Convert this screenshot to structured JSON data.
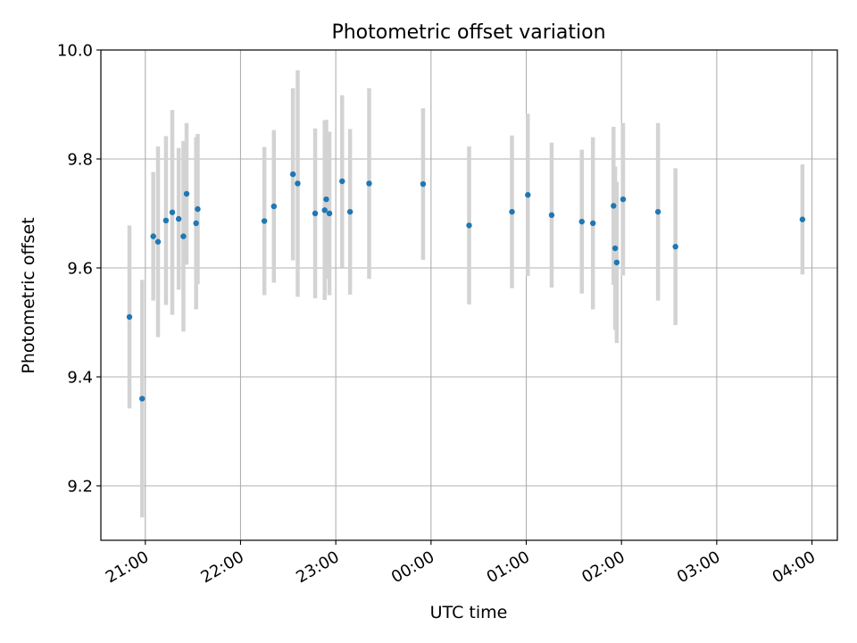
{
  "chart_data": {
    "type": "scatter",
    "title": "Photometric offset variation",
    "xlabel": "UTC time",
    "ylabel": "Photometric offset",
    "ylim": [
      9.1,
      10.0
    ],
    "y_ticks": [
      9.2,
      9.4,
      9.6,
      9.8,
      10.0
    ],
    "y_tick_labels": [
      "9.2",
      "9.4",
      "9.6",
      "9.8",
      "10.0"
    ],
    "xlim": [
      "20:32",
      "04:16"
    ],
    "x_tick_labels": [
      "21:00",
      "22:00",
      "23:00",
      "00:00",
      "01:00",
      "02:00",
      "03:00",
      "04:00"
    ],
    "grid": true,
    "marker_color": "#1f77b4",
    "errorbar_color": "#d3d3d3",
    "points": [
      {
        "t": "20:50",
        "y": 9.51,
        "err": 0.168
      },
      {
        "t": "20:58",
        "y": 9.36,
        "err": 0.218
      },
      {
        "t": "21:05",
        "y": 9.658,
        "err": 0.118
      },
      {
        "t": "21:08",
        "y": 9.648,
        "err": 0.175
      },
      {
        "t": "21:13",
        "y": 9.687,
        "err": 0.155
      },
      {
        "t": "21:17",
        "y": 9.702,
        "err": 0.188
      },
      {
        "t": "21:21",
        "y": 9.69,
        "err": 0.13
      },
      {
        "t": "21:24",
        "y": 9.658,
        "err": 0.175
      },
      {
        "t": "21:26",
        "y": 9.736,
        "err": 0.13
      },
      {
        "t": "21:32",
        "y": 9.682,
        "err": 0.158
      },
      {
        "t": "21:33",
        "y": 9.708,
        "err": 0.138
      },
      {
        "t": "22:15",
        "y": 9.686,
        "err": 0.136
      },
      {
        "t": "22:21",
        "y": 9.713,
        "err": 0.14
      },
      {
        "t": "22:33",
        "y": 9.772,
        "err": 0.158
      },
      {
        "t": "22:36",
        "y": 9.755,
        "err": 0.208
      },
      {
        "t": "22:47",
        "y": 9.7,
        "err": 0.156
      },
      {
        "t": "22:53",
        "y": 9.706,
        "err": 0.165
      },
      {
        "t": "22:54",
        "y": 9.726,
        "err": 0.146
      },
      {
        "t": "22:56",
        "y": 9.7,
        "err": 0.15
      },
      {
        "t": "23:04",
        "y": 9.759,
        "err": 0.158
      },
      {
        "t": "23:09",
        "y": 9.703,
        "err": 0.152
      },
      {
        "t": "23:21",
        "y": 9.755,
        "err": 0.175
      },
      {
        "t": "23:55",
        "y": 9.754,
        "err": 0.139
      },
      {
        "t": "00:24",
        "y": 9.678,
        "err": 0.145
      },
      {
        "t": "00:51",
        "y": 9.703,
        "err": 0.14
      },
      {
        "t": "01:01",
        "y": 9.734,
        "err": 0.149
      },
      {
        "t": "01:16",
        "y": 9.697,
        "err": 0.133
      },
      {
        "t": "01:35",
        "y": 9.685,
        "err": 0.132
      },
      {
        "t": "01:42",
        "y": 9.682,
        "err": 0.158
      },
      {
        "t": "01:55",
        "y": 9.714,
        "err": 0.145
      },
      {
        "t": "01:56",
        "y": 9.636,
        "err": 0.15
      },
      {
        "t": "01:57",
        "y": 9.61,
        "err": 0.148
      },
      {
        "t": "02:01",
        "y": 9.726,
        "err": 0.14
      },
      {
        "t": "02:23",
        "y": 9.703,
        "err": 0.163
      },
      {
        "t": "02:34",
        "y": 9.639,
        "err": 0.144
      },
      {
        "t": "03:54",
        "y": 9.689,
        "err": 0.101
      }
    ]
  }
}
